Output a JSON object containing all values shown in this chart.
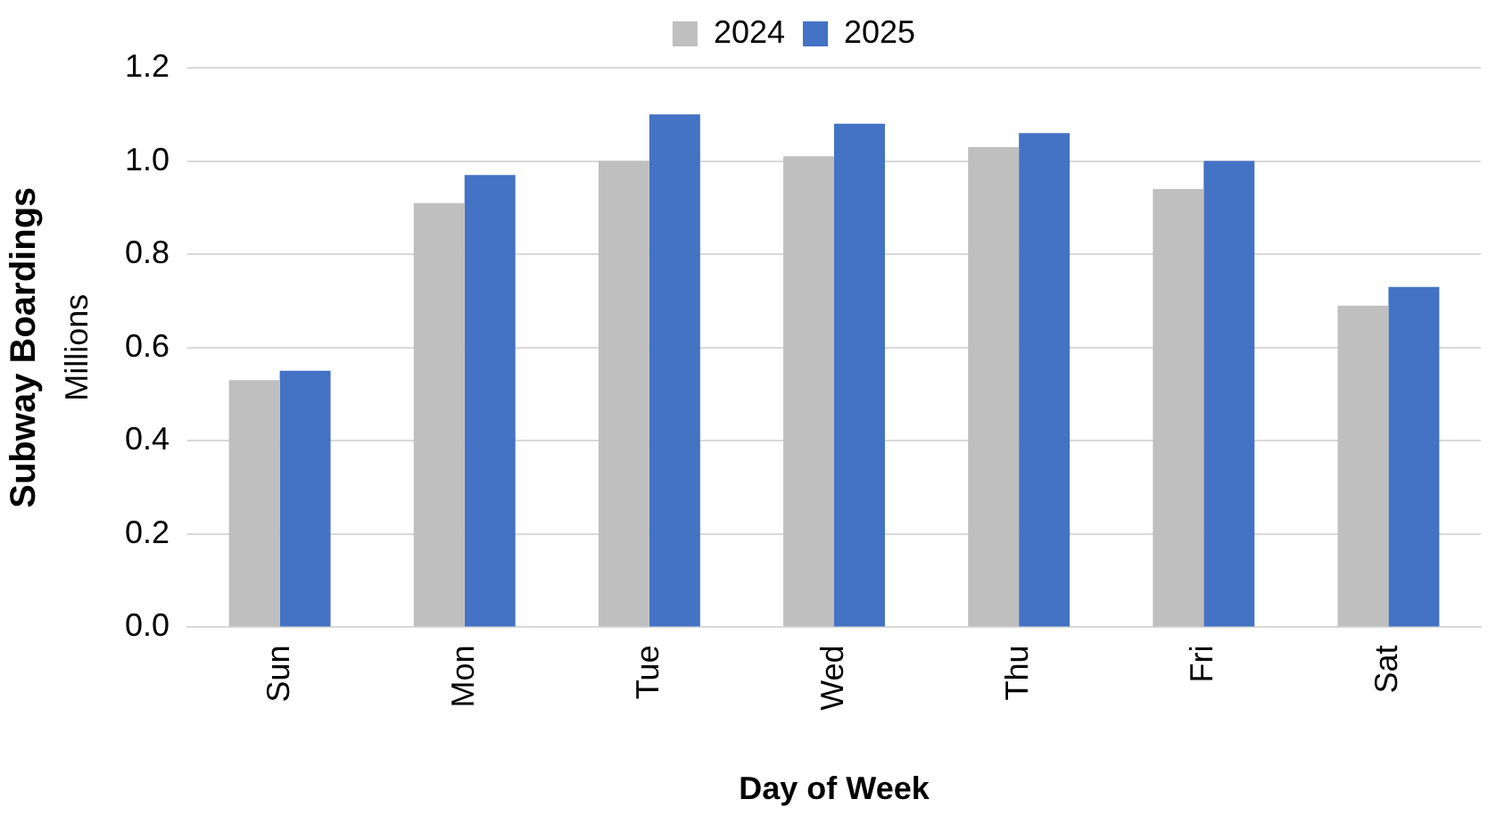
{
  "chart_data": {
    "type": "bar",
    "categories": [
      "Sun",
      "Mon",
      "Tue",
      "Wed",
      "Thu",
      "Fri",
      "Sat"
    ],
    "series": [
      {
        "name": "2024",
        "color": "#bfbfbf",
        "values": [
          0.53,
          0.91,
          1.0,
          1.01,
          1.03,
          0.94,
          0.69
        ]
      },
      {
        "name": "2025",
        "color": "#4472c4",
        "values": [
          0.55,
          0.97,
          1.1,
          1.08,
          1.06,
          1.0,
          0.73
        ]
      }
    ],
    "ylim": [
      0,
      1.2
    ],
    "yticks": [
      {
        "value": 0,
        "label": "0.0"
      },
      {
        "value": 0.2,
        "label": "0.2"
      },
      {
        "value": 0.4,
        "label": "0.4"
      },
      {
        "value": 0.6,
        "label": "0.6"
      },
      {
        "value": 0.8,
        "label": "0.8"
      },
      {
        "value": 1,
        "label": "1.0"
      },
      {
        "value": 1.2,
        "label": "1.2"
      }
    ],
    "xlabel": "Day of Week",
    "ylabel": "Subway Boardings",
    "annotations": [
      "Millions"
    ],
    "grid": "y",
    "legend": "top"
  }
}
